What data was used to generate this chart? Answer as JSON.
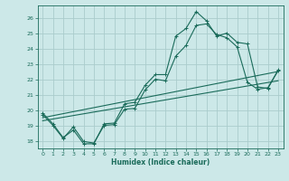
{
  "bg_color": "#cce8e8",
  "grid_color": "#aacccc",
  "line_color": "#1a6b5a",
  "xlabel": "Humidex (Indice chaleur)",
  "xlim": [
    -0.5,
    23.5
  ],
  "ylim": [
    17.5,
    26.8
  ],
  "yticks": [
    18,
    19,
    20,
    21,
    22,
    23,
    24,
    25,
    26
  ],
  "xticks": [
    0,
    1,
    2,
    3,
    4,
    5,
    6,
    7,
    8,
    9,
    10,
    11,
    12,
    13,
    14,
    15,
    16,
    17,
    18,
    19,
    20,
    21,
    22,
    23
  ],
  "line1_x": [
    0,
    1,
    2,
    3,
    4,
    5,
    6,
    7,
    8,
    9,
    10,
    11,
    12,
    13,
    14,
    15,
    16,
    17,
    18,
    19,
    20,
    21,
    22,
    23
  ],
  "line1_y": [
    19.8,
    19.1,
    18.2,
    18.7,
    17.8,
    17.8,
    19.1,
    19.15,
    20.4,
    20.5,
    21.6,
    22.3,
    22.3,
    24.8,
    25.3,
    26.4,
    25.8,
    24.8,
    25.0,
    24.4,
    24.3,
    21.5,
    21.4,
    22.6
  ],
  "line2_x": [
    0,
    1,
    2,
    3,
    4,
    5,
    6,
    7,
    8,
    9,
    10,
    11,
    12,
    13,
    14,
    15,
    16,
    17,
    18,
    19,
    20,
    21,
    22,
    23
  ],
  "line2_y": [
    19.7,
    19.0,
    18.15,
    18.9,
    17.95,
    17.85,
    19.0,
    19.05,
    20.05,
    20.1,
    21.3,
    22.0,
    21.9,
    23.5,
    24.2,
    25.5,
    25.6,
    24.9,
    24.7,
    24.1,
    21.8,
    21.35,
    21.45,
    22.55
  ],
  "line3_x": [
    0,
    23
  ],
  "line3_y": [
    19.5,
    22.5
  ],
  "line4_x": [
    0,
    23
  ],
  "line4_y": [
    19.3,
    21.9
  ]
}
